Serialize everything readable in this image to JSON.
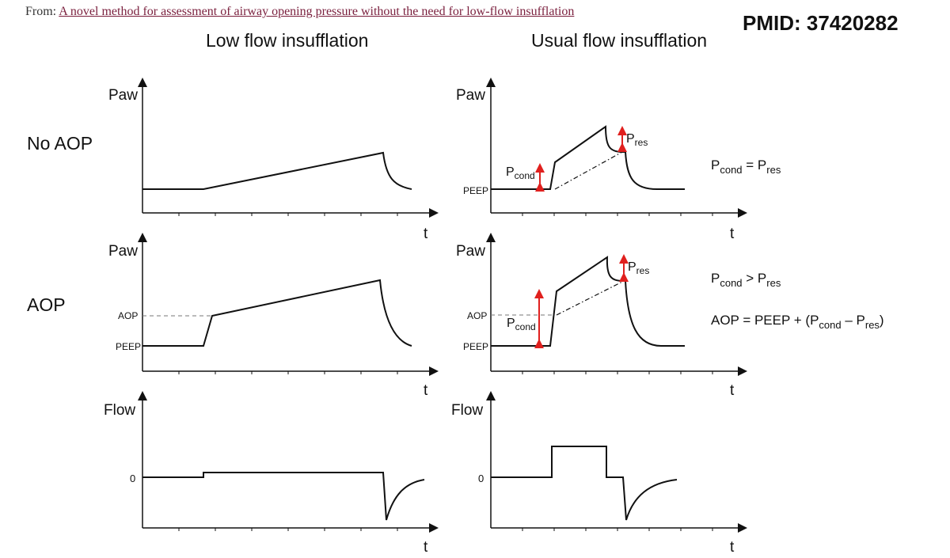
{
  "header": {
    "from_prefix": "From:",
    "from_link": "A novel method for assessment of airway opening pressure without the need for low-flow insufflation",
    "pmid": "PMID: 37420282"
  },
  "columns": {
    "left_title": "Low flow insufflation",
    "right_title": "Usual flow insufflation"
  },
  "rows": {
    "no_aop": "No AOP",
    "aop": "AOP"
  },
  "axis_labels": {
    "paw": "Paw",
    "flow": "Flow",
    "t": "t",
    "peep": "PEEP",
    "aop": "AOP",
    "zero": "0"
  },
  "annotations": {
    "p": "P",
    "cond": "cond",
    "res": "res",
    "eq_sign": " = ",
    "gt_sign": " > ",
    "aop_formula_start": "AOP = PEEP + (",
    "minus": " – ",
    "close_paren": ")"
  },
  "colors": {
    "arrow_red": "#e0201e",
    "link": "#7a1f3d"
  }
}
